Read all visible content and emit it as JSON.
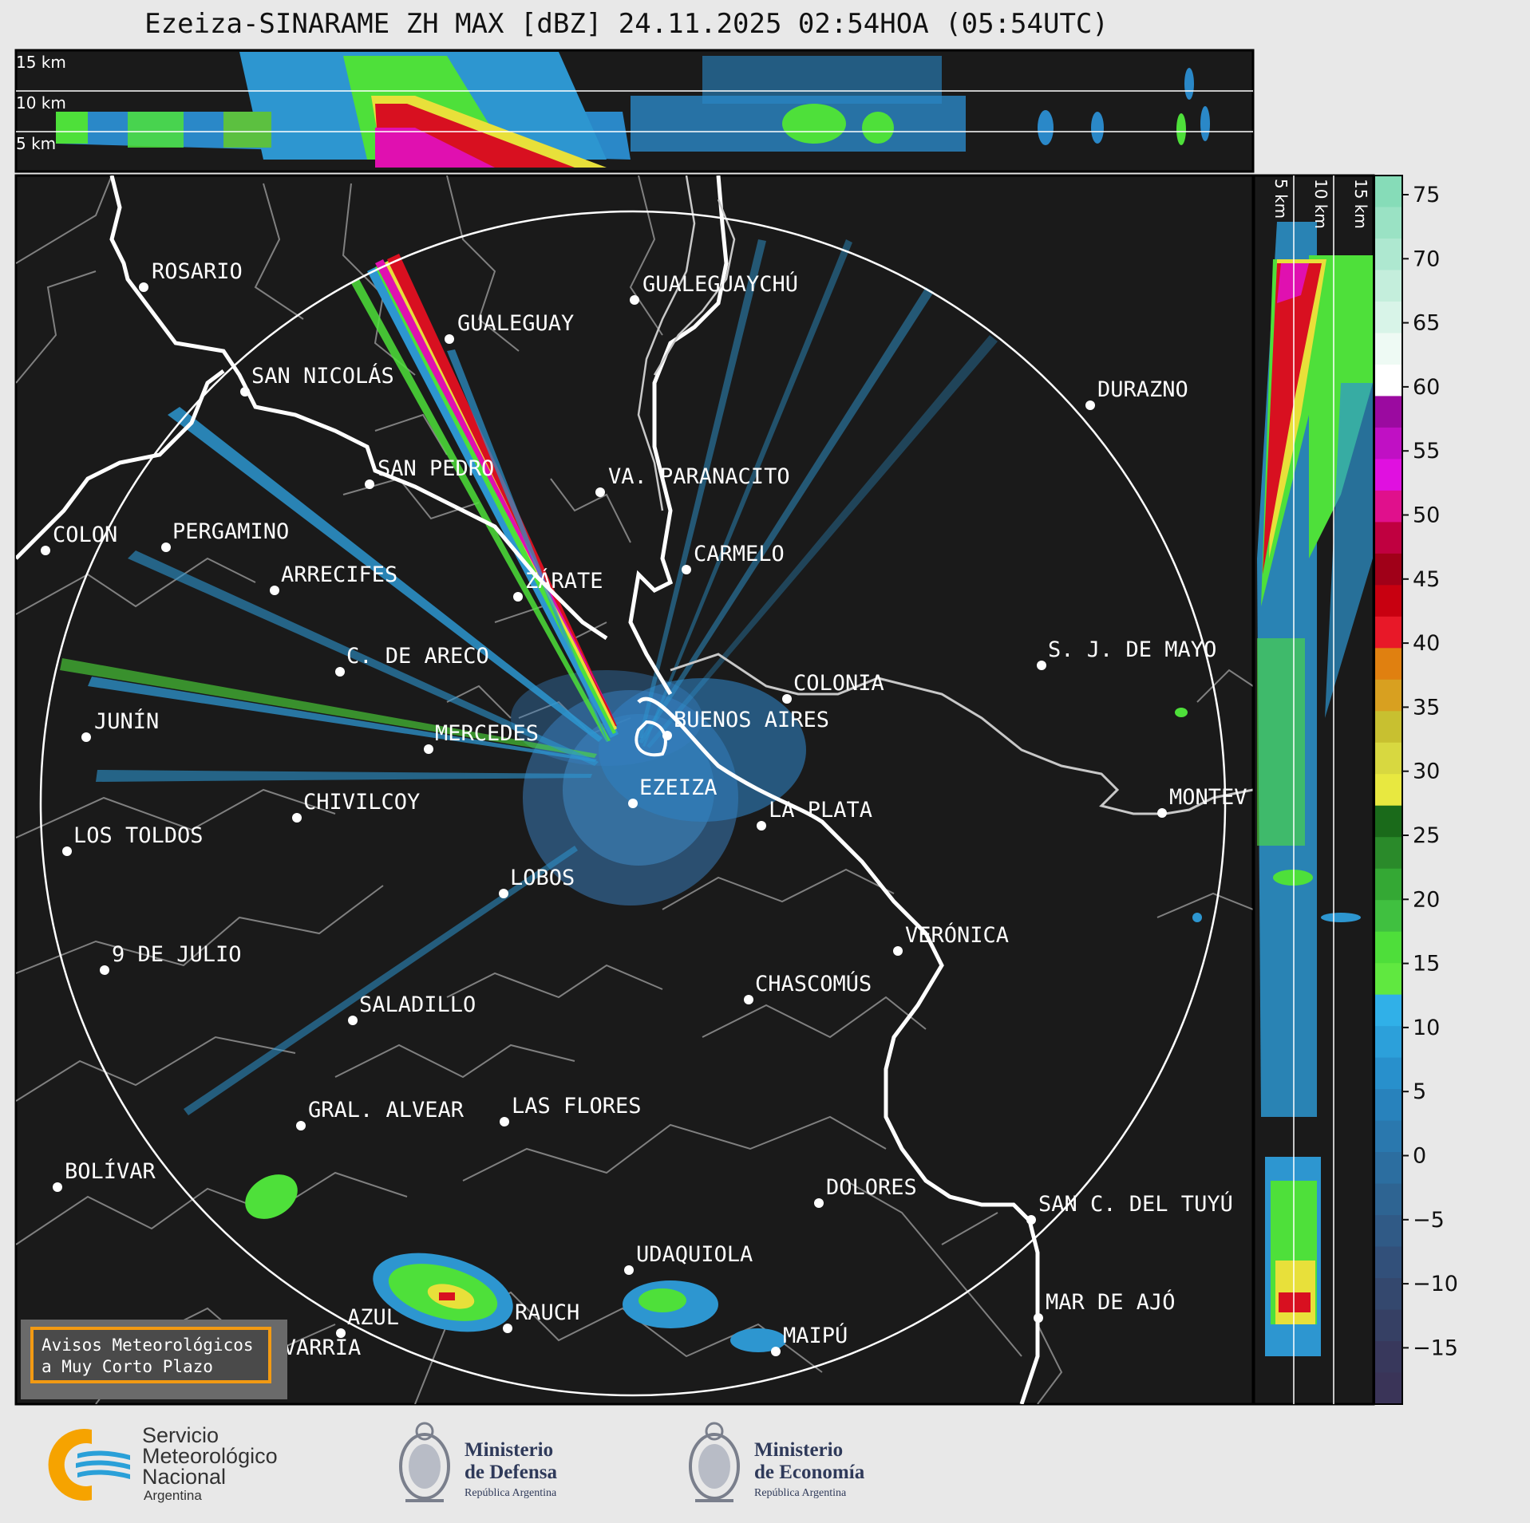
{
  "title": "Ezeiza-SINARAME ZH MAX [dBZ] 24.11.2025 02:54HOA (05:54UTC)",
  "top_panel": {
    "height_labels": [
      "15 km",
      "10 km",
      "5 km"
    ]
  },
  "side_panel": {
    "height_labels": [
      "5 km",
      "10 km",
      "15 km"
    ]
  },
  "colorbar": {
    "ticks": [
      "75",
      "70",
      "65",
      "60",
      "55",
      "50",
      "45",
      "40",
      "35",
      "30",
      "25",
      "20",
      "15",
      "10",
      "5",
      "0",
      "−5",
      "−10",
      "−15"
    ]
  },
  "cities": [
    {
      "name": "ROSARIO"
    },
    {
      "name": "GUALEGUAYCHÚ"
    },
    {
      "name": "GUALEGUAY"
    },
    {
      "name": "SAN NICOLÁS"
    },
    {
      "name": "DURAZNO"
    },
    {
      "name": "SAN PEDRO"
    },
    {
      "name": "VA. PARANACITO"
    },
    {
      "name": "COLON"
    },
    {
      "name": "PERGAMINO"
    },
    {
      "name": "CARMELO"
    },
    {
      "name": "ARRECIFES"
    },
    {
      "name": "ZÁRATE"
    },
    {
      "name": "C. DE ARECO"
    },
    {
      "name": "S. J. DE MAYO"
    },
    {
      "name": "COLONIA"
    },
    {
      "name": "JUNÍN"
    },
    {
      "name": "MERCEDES"
    },
    {
      "name": "BUENOS AIRES"
    },
    {
      "name": "EZEIZA"
    },
    {
      "name": "MONTEV"
    },
    {
      "name": "CHIVILCOY"
    },
    {
      "name": "LA PLATA"
    },
    {
      "name": "LOS TOLDOS"
    },
    {
      "name": "LOBOS"
    },
    {
      "name": "VERÓNICA"
    },
    {
      "name": "9 DE JULIO"
    },
    {
      "name": "CHASCOMÚS"
    },
    {
      "name": "SALADILLO"
    },
    {
      "name": "GRAL. ALVEAR"
    },
    {
      "name": "LAS FLORES"
    },
    {
      "name": "BOLÍVAR"
    },
    {
      "name": "DOLORES"
    },
    {
      "name": "SAN C. DEL TUYÚ"
    },
    {
      "name": "UDAQUIOLA"
    },
    {
      "name": "MAR DE AJÓ"
    },
    {
      "name": "AZUL"
    },
    {
      "name": "RAUCH"
    },
    {
      "name": "MAIPÚ"
    },
    {
      "name": "OLAVARRÍA"
    }
  ],
  "aviso": {
    "line1": "Avisos Meteorológicos",
    "line2": "a Muy Corto Plazo"
  },
  "logos": {
    "smn": {
      "line1": "Servicio",
      "line2": "Meteorológico",
      "line3": "Nacional",
      "line4": "Argentina"
    },
    "defensa": {
      "line1": "Ministerio",
      "line2": "de Defensa",
      "line3": "República Argentina"
    },
    "economia": {
      "line1": "Ministerio",
      "line2": "de Economía",
      "line3": "República Argentina"
    }
  },
  "colors": {
    "background": "#1a1a1a",
    "range_ring": "#ffffff",
    "border_gray": "#808080",
    "aviso_border": "#f29a13",
    "smn_orange": "#f6a300",
    "smn_blue": "#2aa0d8"
  }
}
